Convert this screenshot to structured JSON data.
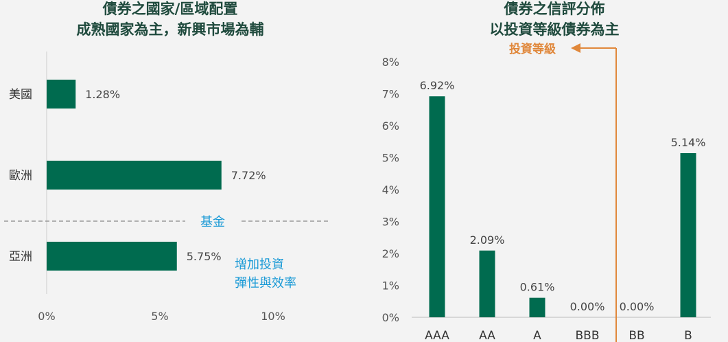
{
  "colors": {
    "bar": "#006b4f",
    "accent_blue": "#1a9ad6",
    "accent_orange": "#e0873a",
    "title": "#1f4a3d"
  },
  "chart_data": [
    {
      "type": "bar",
      "orientation": "horizontal",
      "title_lines": [
        "債券之國家/區域配置",
        "成熟國家為主，新興市場為輔"
      ],
      "categories": [
        "美國",
        "歐洲",
        "亞洲"
      ],
      "values": [
        1.28,
        7.72,
        5.75
      ],
      "value_labels": [
        "1.28%",
        "7.72%",
        "5.75%"
      ],
      "xlim": [
        0,
        10
      ],
      "xticks": [
        "0%",
        "5%",
        "10%"
      ],
      "annotations": {
        "divider_label": "基金",
        "note_lines": [
          "增加投資",
          "彈性與效率"
        ]
      }
    },
    {
      "type": "bar",
      "title_lines": [
        "債券之信評分佈",
        "以投資等級債券為主"
      ],
      "categories": [
        "AAA",
        "AA",
        "A",
        "BBB",
        "BB",
        "B"
      ],
      "values": [
        6.92,
        2.09,
        0.61,
        0.0,
        0.0,
        5.14
      ],
      "value_labels": [
        "6.92%",
        "2.09%",
        "0.61%",
        "0.00%",
        "0.00%",
        "5.14%"
      ],
      "ylim": [
        0,
        8
      ],
      "yticks": [
        "0%",
        "1%",
        "2%",
        "3%",
        "4%",
        "5%",
        "6%",
        "7%",
        "8%"
      ],
      "annotations": {
        "investment_grade_label": "投資等級"
      }
    }
  ]
}
